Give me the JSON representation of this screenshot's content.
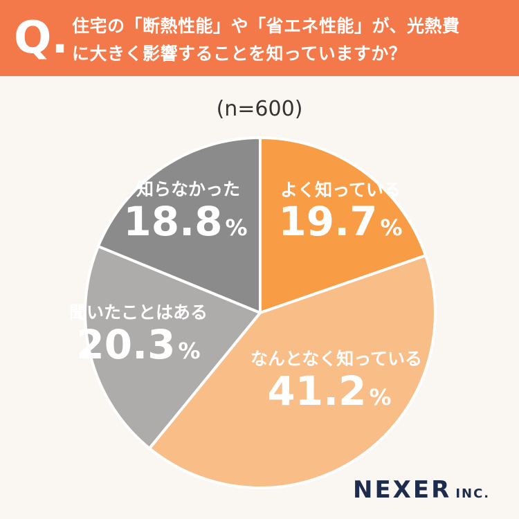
{
  "question": {
    "mark": "Q.",
    "line1": "住宅の「断熱性能」や「省エネ性能」が、光熱費",
    "line2": "に大きく影響することを知っていますか？"
  },
  "sample_label": "(n=600)",
  "brand": {
    "name": "NEXER",
    "suffix": "INC."
  },
  "chart_data": {
    "type": "pie",
    "start": "12 o'clock, clockwise",
    "slices": [
      {
        "label": "よく知っている",
        "value": 19.7,
        "display": "19.7",
        "color": "#f89c45"
      },
      {
        "label": "なんとなく知っている",
        "value": 41.2,
        "display": "41.2",
        "color": "#f9bd88"
      },
      {
        "label": "聞いたことはある",
        "value": 20.3,
        "display": "20.3",
        "color": "#aeabab"
      },
      {
        "label": "知らなかった",
        "value": 18.8,
        "display": "18.8",
        "color": "#8b8b8b"
      }
    ],
    "unit": "%"
  }
}
